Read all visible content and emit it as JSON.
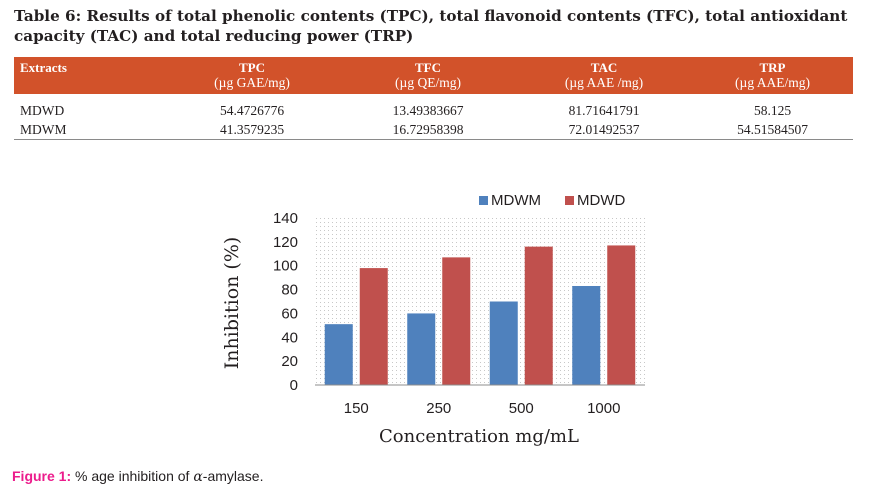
{
  "table": {
    "title": "Table 6: Results of total phenolic contents (TPC), total flavonoid contents (TFC), total antioxidant capacity (TAC) and total reducing power (TRP)",
    "headers": [
      {
        "label": "Extracts",
        "unit": ""
      },
      {
        "label": "TPC",
        "unit": "(µg GAE/mg)"
      },
      {
        "label": "TFC",
        "unit": "(µg QE/mg)"
      },
      {
        "label": "TAC",
        "unit": "(µg AAE /mg)"
      },
      {
        "label": "TRP",
        "unit": "(µg AAE/mg)"
      }
    ],
    "rows": [
      [
        "MDWD",
        "54.4726776",
        "13.49383667",
        "81.71641791",
        "58.125"
      ],
      [
        "MDWM",
        "41.3579235",
        "16.72958398",
        "72.01492537",
        "54.51584507"
      ]
    ],
    "header_color": "#d2522a"
  },
  "chart_data": {
    "type": "bar",
    "categories": [
      "150",
      "250",
      "500",
      "1000"
    ],
    "series": [
      {
        "name": "MDWM",
        "color": "#4f81bd",
        "values": [
          51,
          60,
          70,
          83
        ]
      },
      {
        "name": "MDWD",
        "color": "#c0504d",
        "values": [
          98,
          107,
          116,
          117
        ]
      }
    ],
    "xlabel": "Concentration mg/mL",
    "ylabel": "Inhibition (%)",
    "ylim": [
      0,
      140
    ],
    "yticks": [
      "0",
      "20",
      "40",
      "60",
      "80",
      "100",
      "120",
      "140"
    ],
    "grid": false,
    "plot_area": "dotted pattern",
    "legend": "top-right"
  },
  "caption": {
    "label": "Figure 1:",
    "text_before": " % age inhibition of ",
    "symbol": "α",
    "text_after": "-amylase."
  }
}
